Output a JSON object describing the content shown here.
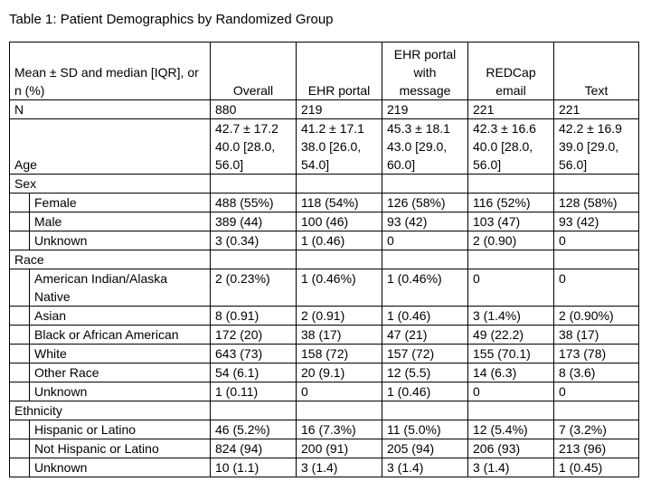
{
  "title": "Table 1: Patient Demographics by Randomized Group",
  "table": {
    "header_label": "Mean ± SD and median [IQR], or n (%)",
    "columns": [
      "Overall",
      "EHR portal",
      "EHR portal with message",
      "REDCap email",
      "Text"
    ],
    "rows": [
      {
        "type": "data",
        "indent": false,
        "label": "N",
        "values": [
          "880",
          "219",
          "219",
          "221",
          "221"
        ]
      },
      {
        "type": "data",
        "indent": false,
        "label": "Age",
        "values": [
          "42.7 ± 17.2\n40.0 [28.0, 56.0]",
          "41.2 ± 17.1\n38.0 [26.0, 54.0]",
          "45.3 ± 18.1\n43.0 [29.0, 60.0]",
          "42.3 ± 16.6\n40.0 [28.0, 56.0]",
          "42.2 ± 16.9\n39.0 [29.0, 56.0]"
        ]
      },
      {
        "type": "section",
        "label": "Sex",
        "values": [
          "",
          "",
          "",
          "",
          ""
        ]
      },
      {
        "type": "data",
        "indent": true,
        "label": "Female",
        "values": [
          "488 (55%)",
          "118 (54%)",
          "126 (58%)",
          "116 (52%)",
          "128 (58%)"
        ]
      },
      {
        "type": "data",
        "indent": true,
        "label": "Male",
        "values": [
          "389 (44)",
          "100 (46)",
          "93 (42)",
          "103 (47)",
          "93 (42)"
        ]
      },
      {
        "type": "data",
        "indent": true,
        "label": "Unknown",
        "values": [
          "3 (0.34)",
          "1 (0.46)",
          "0",
          "2 (0.90)",
          "0"
        ]
      },
      {
        "type": "section",
        "label": "Race",
        "values": [
          "",
          "",
          "",
          "",
          ""
        ]
      },
      {
        "type": "data",
        "indent": true,
        "label": "American Indian/Alaska Native",
        "values": [
          "2 (0.23%)",
          "1 (0.46%)",
          "1 (0.46%)",
          "0",
          "0"
        ]
      },
      {
        "type": "data",
        "indent": true,
        "label": "Asian",
        "values": [
          "8 (0.91)",
          "2 (0.91)",
          "1 (0.46)",
          "3 (1.4%)",
          "2 (0.90%)"
        ]
      },
      {
        "type": "data",
        "indent": true,
        "label": "Black or African American",
        "values": [
          "172 (20)",
          "38 (17)",
          "47 (21)",
          "49 (22.2)",
          "38 (17)"
        ]
      },
      {
        "type": "data",
        "indent": true,
        "label": "White",
        "values": [
          "643 (73)",
          "158 (72)",
          "157 (72)",
          "155 (70.1)",
          "173 (78)"
        ]
      },
      {
        "type": "data",
        "indent": true,
        "label": "Other Race",
        "values": [
          "54 (6.1)",
          "20 (9.1)",
          "12 (5.5)",
          "14 (6.3)",
          "8 (3.6)"
        ]
      },
      {
        "type": "data",
        "indent": true,
        "label": "Unknown",
        "values": [
          "1 (0.11)",
          "0",
          "1 (0.46)",
          "0",
          "0"
        ]
      },
      {
        "type": "section",
        "label": "Ethnicity",
        "values": [
          "",
          "",
          "",
          "",
          ""
        ]
      },
      {
        "type": "data",
        "indent": true,
        "label": "Hispanic or Latino",
        "values": [
          "46 (5.2%)",
          "16 (7.3%)",
          "11 (5.0%)",
          "12 (5.4%)",
          "7 (3.2%)"
        ]
      },
      {
        "type": "data",
        "indent": true,
        "label": "Not Hispanic or Latino",
        "values": [
          "824 (94)",
          "200 (91)",
          "205 (94)",
          "206 (93)",
          "213 (96)"
        ]
      },
      {
        "type": "data",
        "indent": true,
        "label": "Unknown",
        "values": [
          "10 (1.1)",
          "3 (1.4)",
          "3 (1.4)",
          "3 (1.4)",
          "1 (0.45)"
        ]
      }
    ]
  }
}
